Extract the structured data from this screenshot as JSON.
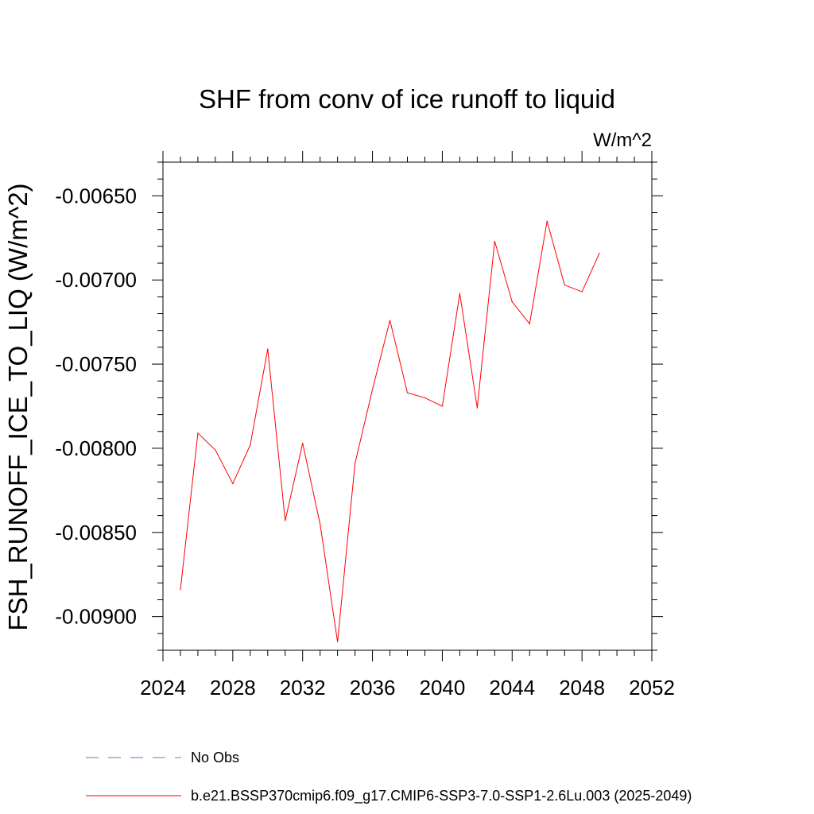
{
  "chart_data": {
    "type": "line",
    "title": "SHF from conv of ice runoff to liquid",
    "units_label": "W/m^2",
    "ylabel": "FSH_RUNOFF_ICE_TO_LIQ  (W/m^2)",
    "xlabel": "",
    "xlim": [
      2024,
      2052
    ],
    "ylim": [
      -0.0092,
      -0.0063
    ],
    "x_ticks": [
      2024,
      2028,
      2032,
      2036,
      2040,
      2044,
      2048,
      2052
    ],
    "y_ticks": [
      -0.009,
      -0.0085,
      -0.008,
      -0.0075,
      -0.007,
      -0.0065
    ],
    "y_tick_labels": [
      "-0.00900",
      "-0.00850",
      "-0.00800",
      "-0.00750",
      "-0.00700",
      "-0.00650"
    ],
    "grid": false,
    "series": [
      {
        "name": "b.e21.BSSP370cmip6.f09_g17.CMIP6-SSP3-7.0-SSP1-2.6Lu.003 (2025-2049)",
        "color": "#ff0000",
        "style": "solid",
        "x": [
          2025,
          2026,
          2027,
          2028,
          2029,
          2030,
          2031,
          2032,
          2033,
          2034,
          2035,
          2036,
          2037,
          2038,
          2039,
          2040,
          2041,
          2042,
          2043,
          2044,
          2045,
          2046,
          2047,
          2048,
          2049
        ],
        "values": [
          -0.00884,
          -0.00791,
          -0.00801,
          -0.00821,
          -0.00798,
          -0.00741,
          -0.00843,
          -0.00797,
          -0.00845,
          -0.00915,
          -0.00809,
          -0.00765,
          -0.00724,
          -0.00767,
          -0.0077,
          -0.00775,
          -0.00708,
          -0.00776,
          -0.00677,
          -0.00713,
          -0.00726,
          -0.00665,
          -0.00703,
          -0.00707,
          -0.00684
        ]
      }
    ],
    "legend": [
      {
        "label": "No Obs",
        "color": "#7b68c8",
        "style": "dashed"
      },
      {
        "label": "b.e21.BSSP370cmip6.f09_g17.CMIP6-SSP3-7.0-SSP1-2.6Lu.003 (2025-2049)",
        "color": "#ff0000",
        "style": "solid"
      }
    ],
    "legend_position": "bottom-center"
  }
}
